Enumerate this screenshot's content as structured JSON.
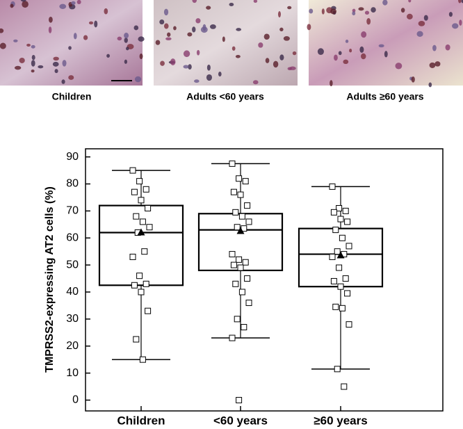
{
  "captions": [
    "Children",
    "Adults <60 years",
    "Adults ≥60 years"
  ],
  "chart_data": {
    "type": "box",
    "ylabel": "TMPRSS2-expressing AT2 cells (%)",
    "categories": [
      "Children",
      "<60 years",
      "≥60 years"
    ],
    "ylim": [
      -4,
      93
    ],
    "yticks": [
      0,
      10,
      20,
      30,
      40,
      50,
      60,
      70,
      80,
      90
    ],
    "boxes": [
      {
        "whislo": 15,
        "q1": 42.5,
        "med": 62,
        "q3": 72,
        "whishi": 85,
        "mean": 62,
        "points": [
          85,
          81,
          78,
          77,
          74,
          71,
          68,
          66,
          64,
          62,
          55,
          53,
          46,
          43,
          42.5,
          40,
          33,
          22.5,
          15
        ]
      },
      {
        "whislo": 23,
        "q1": 48,
        "med": 63,
        "q3": 69,
        "whishi": 87.5,
        "mean": 62.5,
        "points": [
          87.5,
          82,
          81,
          77,
          76,
          72,
          69.5,
          68,
          66,
          64,
          63.5,
          54,
          52,
          51,
          50,
          49,
          45,
          43,
          40,
          36,
          30,
          27,
          23,
          0
        ]
      },
      {
        "whislo": 11.5,
        "q1": 42,
        "med": 54,
        "q3": 63.5,
        "whishi": 79,
        "mean": 53.5,
        "points": [
          79,
          71,
          70,
          69.5,
          67,
          66,
          63,
          60,
          57,
          55,
          54,
          53,
          49,
          45,
          44,
          42,
          39.5,
          34.5,
          34,
          28,
          11.5,
          5
        ]
      }
    ]
  }
}
